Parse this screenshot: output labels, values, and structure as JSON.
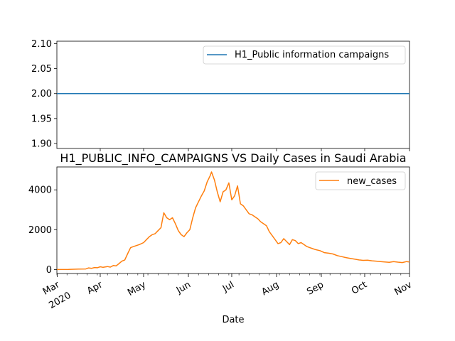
{
  "chart_data": [
    {
      "type": "line",
      "title": "",
      "xlabel": "",
      "ylabel": "",
      "ylim": [
        1.89,
        2.105
      ],
      "yticks": [
        "1.90",
        "1.95",
        "2.00",
        "2.05",
        "2.10"
      ],
      "grid": false,
      "legend": "top-right",
      "series": [
        {
          "name": "H1_Public information campaigns",
          "color": "#1f77b4",
          "x": [
            "2020-03-02",
            "2020-11-01"
          ],
          "y": [
            2,
            2
          ]
        }
      ]
    },
    {
      "type": "line",
      "title": "H1_PUBLIC_INFO_CAMPAIGNS VS Daily Cases in Saudi Arabia",
      "xlabel": "Date",
      "ylabel": "",
      "ylim": [
        -200,
        5150
      ],
      "yticks": [
        "0",
        "2000",
        "4000"
      ],
      "grid": false,
      "legend": "top-right",
      "xlim": [
        "2020-03-02",
        "2020-11-01"
      ],
      "xticks": [
        {
          "date": "2020-03-01",
          "label": "Mar",
          "sublabel": "2020"
        },
        {
          "date": "2020-04-01",
          "label": "Apr"
        },
        {
          "date": "2020-05-01",
          "label": "May"
        },
        {
          "date": "2020-06-01",
          "label": "Jun"
        },
        {
          "date": "2020-07-01",
          "label": "Jul"
        },
        {
          "date": "2020-08-01",
          "label": "Aug"
        },
        {
          "date": "2020-09-01",
          "label": "Sep"
        },
        {
          "date": "2020-10-01",
          "label": "Oct"
        },
        {
          "date": "2020-11-01",
          "label": "Nov"
        }
      ],
      "series": [
        {
          "name": "new_cases",
          "color": "#ff7f0e",
          "points": [
            [
              "2020-03-02",
              0
            ],
            [
              "2020-03-10",
              5
            ],
            [
              "2020-03-17",
              20
            ],
            [
              "2020-03-22",
              30
            ],
            [
              "2020-03-24",
              80
            ],
            [
              "2020-03-26",
              60
            ],
            [
              "2020-03-28",
              100
            ],
            [
              "2020-03-30",
              90
            ],
            [
              "2020-04-01",
              140
            ],
            [
              "2020-04-03",
              110
            ],
            [
              "2020-04-06",
              150
            ],
            [
              "2020-04-08",
              120
            ],
            [
              "2020-04-10",
              200
            ],
            [
              "2020-04-12",
              180
            ],
            [
              "2020-04-14",
              300
            ],
            [
              "2020-04-16",
              420
            ],
            [
              "2020-04-18",
              480
            ],
            [
              "2020-04-20",
              800
            ],
            [
              "2020-04-22",
              1100
            ],
            [
              "2020-04-24",
              1150
            ],
            [
              "2020-04-26",
              1200
            ],
            [
              "2020-04-28",
              1250
            ],
            [
              "2020-05-01",
              1350
            ],
            [
              "2020-05-03",
              1500
            ],
            [
              "2020-05-05",
              1650
            ],
            [
              "2020-05-07",
              1750
            ],
            [
              "2020-05-09",
              1800
            ],
            [
              "2020-05-11",
              1950
            ],
            [
              "2020-05-13",
              2100
            ],
            [
              "2020-05-15",
              2850
            ],
            [
              "2020-05-17",
              2600
            ],
            [
              "2020-05-19",
              2500
            ],
            [
              "2020-05-21",
              2600
            ],
            [
              "2020-05-23",
              2300
            ],
            [
              "2020-05-25",
              1950
            ],
            [
              "2020-05-27",
              1750
            ],
            [
              "2020-05-29",
              1650
            ],
            [
              "2020-05-31",
              1850
            ],
            [
              "2020-06-02",
              2000
            ],
            [
              "2020-06-04",
              2600
            ],
            [
              "2020-06-06",
              3100
            ],
            [
              "2020-06-08",
              3400
            ],
            [
              "2020-06-10",
              3700
            ],
            [
              "2020-06-12",
              3950
            ],
            [
              "2020-06-14",
              4400
            ],
            [
              "2020-06-16",
              4700
            ],
            [
              "2020-06-17",
              4900
            ],
            [
              "2020-06-19",
              4500
            ],
            [
              "2020-06-21",
              3900
            ],
            [
              "2020-06-23",
              3400
            ],
            [
              "2020-06-25",
              3900
            ],
            [
              "2020-06-27",
              4000
            ],
            [
              "2020-06-29",
              4350
            ],
            [
              "2020-07-01",
              3500
            ],
            [
              "2020-07-03",
              3700
            ],
            [
              "2020-07-05",
              4200
            ],
            [
              "2020-07-07",
              3300
            ],
            [
              "2020-07-09",
              3200
            ],
            [
              "2020-07-11",
              3000
            ],
            [
              "2020-07-13",
              2800
            ],
            [
              "2020-07-15",
              2750
            ],
            [
              "2020-07-17",
              2650
            ],
            [
              "2020-07-19",
              2550
            ],
            [
              "2020-07-21",
              2400
            ],
            [
              "2020-07-23",
              2300
            ],
            [
              "2020-07-25",
              2200
            ],
            [
              "2020-07-27",
              1900
            ],
            [
              "2020-07-29",
              1700
            ],
            [
              "2020-07-31",
              1500
            ],
            [
              "2020-08-02",
              1300
            ],
            [
              "2020-08-04",
              1350
            ],
            [
              "2020-08-06",
              1550
            ],
            [
              "2020-08-08",
              1400
            ],
            [
              "2020-08-10",
              1250
            ],
            [
              "2020-08-12",
              1500
            ],
            [
              "2020-08-14",
              1450
            ],
            [
              "2020-08-16",
              1300
            ],
            [
              "2020-08-18",
              1350
            ],
            [
              "2020-08-20",
              1250
            ],
            [
              "2020-08-22",
              1150
            ],
            [
              "2020-08-24",
              1100
            ],
            [
              "2020-08-26",
              1050
            ],
            [
              "2020-08-28",
              1000
            ],
            [
              "2020-08-31",
              950
            ],
            [
              "2020-09-03",
              850
            ],
            [
              "2020-09-06",
              820
            ],
            [
              "2020-09-09",
              780
            ],
            [
              "2020-09-12",
              700
            ],
            [
              "2020-09-15",
              650
            ],
            [
              "2020-09-18",
              600
            ],
            [
              "2020-09-21",
              560
            ],
            [
              "2020-09-24",
              520
            ],
            [
              "2020-09-27",
              480
            ],
            [
              "2020-09-30",
              460
            ],
            [
              "2020-10-03",
              470
            ],
            [
              "2020-10-06",
              440
            ],
            [
              "2020-10-09",
              420
            ],
            [
              "2020-10-12",
              400
            ],
            [
              "2020-10-15",
              380
            ],
            [
              "2020-10-18",
              360
            ],
            [
              "2020-10-21",
              400
            ],
            [
              "2020-10-24",
              370
            ],
            [
              "2020-10-27",
              350
            ],
            [
              "2020-10-30",
              400
            ],
            [
              "2020-11-01",
              380
            ]
          ]
        }
      ]
    }
  ]
}
